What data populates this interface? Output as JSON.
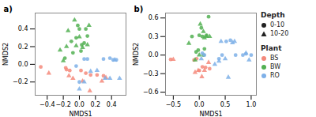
{
  "chart_data": [
    {
      "type": "scatter",
      "title": "a)",
      "xlabel": "NMDS1",
      "ylabel": "NMDS2",
      "xlim": [
        -0.55,
        0.58
      ],
      "ylim": [
        -0.35,
        0.58
      ],
      "xticks": [
        -0.4,
        -0.2,
        {
          "value": 0.0,
          "label": "0.0"
        },
        0.2,
        0.4
      ],
      "yticks": [
        -0.2,
        {
          "value": 0.0,
          "label": "0.0"
        },
        0.2,
        0.4
      ],
      "grid": false,
      "series": [
        {
          "name": "BS",
          "color": "#F4897B",
          "marker": "circle",
          "x": [
            -0.48,
            -0.17,
            -0.16,
            -0.12,
            0.02,
            0.08,
            0.14,
            0.22,
            0.3
          ],
          "values": [
            -0.03,
            -0.04,
            -0.06,
            -0.07,
            -0.07,
            -0.1,
            -0.12,
            -0.12,
            -0.13
          ]
        },
        {
          "name": "BS",
          "color": "#F4897B",
          "marker": "triangle",
          "x": [
            -0.38,
            -0.13,
            -0.08,
            0.04,
            0.13,
            0.28,
            0.33
          ],
          "values": [
            -0.1,
            -0.13,
            -0.16,
            -0.19,
            -0.3,
            -0.19,
            -0.15
          ]
        },
        {
          "name": "BW",
          "color": "#52B052",
          "marker": "circle",
          "x": [
            -0.18,
            -0.1,
            -0.08,
            -0.04,
            -0.02,
            0.0,
            0.02,
            0.03,
            0.06,
            0.08,
            0.1
          ],
          "values": [
            0.07,
            0.26,
            0.13,
            0.3,
            0.44,
            0.4,
            0.15,
            0.22,
            0.24,
            0.4,
            0.32
          ]
        },
        {
          "name": "BW",
          "color": "#52B052",
          "marker": "triangle",
          "x": [
            -0.24,
            -0.2,
            -0.16,
            -0.14,
            -0.06,
            -0.04,
            0.0,
            0.04,
            0.1,
            0.12
          ],
          "values": [
            0.16,
            0.04,
            0.2,
            0.38,
            0.5,
            0.21,
            0.31,
            0.19,
            0.22,
            0.44
          ]
        },
        {
          "name": "RO",
          "color": "#7EB0E8",
          "marker": "circle",
          "x": [
            -0.04,
            0.0,
            0.06,
            0.1,
            0.3,
            0.38,
            0.42,
            0.46
          ],
          "values": [
            -0.02,
            -0.2,
            0.06,
            0.06,
            0.06,
            0.07,
            0.05,
            0.05
          ]
        },
        {
          "name": "RO",
          "color": "#7EB0E8",
          "marker": "triangle",
          "x": [
            0.0,
            0.06,
            0.14,
            0.22,
            0.32,
            0.38,
            0.44,
            0.5
          ],
          "values": [
            -0.28,
            -0.2,
            -0.08,
            -0.07,
            -0.16,
            -0.16,
            0.05,
            -0.16
          ]
        }
      ]
    },
    {
      "type": "scatter",
      "title": "b)",
      "xlabel": "NMDS1",
      "ylabel": "NMDS2",
      "xlim": [
        -0.65,
        1.1
      ],
      "ylim": [
        -0.65,
        0.68
      ],
      "xticks": [
        -0.5,
        {
          "value": 0.0,
          "label": "0.0"
        },
        0.5,
        {
          "value": 1.0,
          "label": "1.0"
        }
      ],
      "yticks": [
        -0.6,
        -0.3,
        {
          "value": 0.0,
          "label": "0.0"
        },
        0.3,
        0.6
      ],
      "grid": false,
      "legend": "right",
      "legend_sections": [
        {
          "title": "Depth",
          "entries": [
            {
              "name": "0-10",
              "marker": "circle"
            },
            {
              "name": "10-20",
              "marker": "triangle"
            }
          ]
        },
        {
          "title": "Plant",
          "entries": [
            {
              "name": "BS",
              "color": "#F4897B",
              "marker": "circle"
            },
            {
              "name": "BW",
              "color": "#52B052",
              "marker": "circle"
            },
            {
              "name": "RO",
              "color": "#7EB0E8",
              "marker": "circle"
            }
          ]
        }
      ],
      "series": [
        {
          "name": "BS",
          "color": "#F4897B",
          "marker": "circle",
          "x": [
            -0.55,
            -0.1,
            -0.05,
            0.0,
            0.06,
            0.12,
            0.2
          ],
          "values": [
            -0.07,
            -0.08,
            -0.06,
            -0.25,
            -0.19,
            -0.2,
            -0.22
          ]
        },
        {
          "name": "BS",
          "color": "#F4897B",
          "marker": "triangle",
          "x": [
            -0.5,
            -0.08,
            -0.02,
            0.05,
            0.1,
            0.18
          ],
          "values": [
            -0.07,
            -0.28,
            -0.25,
            -0.35,
            -0.25,
            -0.12
          ]
        },
        {
          "name": "BW",
          "color": "#52B052",
          "marker": "circle",
          "x": [
            -0.14,
            -0.06,
            -0.02,
            0.0,
            0.04,
            0.06,
            0.08,
            0.1,
            0.14,
            0.18
          ],
          "values": [
            0.3,
            0.05,
            0.08,
            0.32,
            0.44,
            0.3,
            0.0,
            0.1,
            0.32,
            0.62
          ]
        },
        {
          "name": "BW",
          "color": "#52B052",
          "marker": "triangle",
          "x": [
            -0.2,
            -0.08,
            0.0,
            0.02,
            0.08,
            0.1,
            0.14,
            0.2
          ],
          "values": [
            0.19,
            -0.08,
            0.0,
            0.5,
            0.38,
            0.28,
            0.3,
            0.3
          ]
        },
        {
          "name": "RO",
          "color": "#7EB0E8",
          "marker": "circle",
          "x": [
            0.06,
            0.1,
            0.38,
            0.44,
            0.52,
            0.6,
            0.7,
            0.84,
            0.9,
            1.0
          ],
          "values": [
            0.03,
            0.0,
            -0.06,
            0.0,
            0.22,
            0.24,
            0.0,
            0.0,
            0.02,
            0.0
          ]
        },
        {
          "name": "RO",
          "color": "#7EB0E8",
          "marker": "triangle",
          "x": [
            0.04,
            0.3,
            0.38,
            0.42,
            0.5,
            0.56,
            0.64,
            0.68,
            0.9,
            0.96
          ],
          "values": [
            -0.06,
            -0.15,
            -0.1,
            0.22,
            -0.06,
            -0.36,
            0.2,
            0.22,
            0.03,
            -0.08
          ]
        }
      ]
    }
  ]
}
